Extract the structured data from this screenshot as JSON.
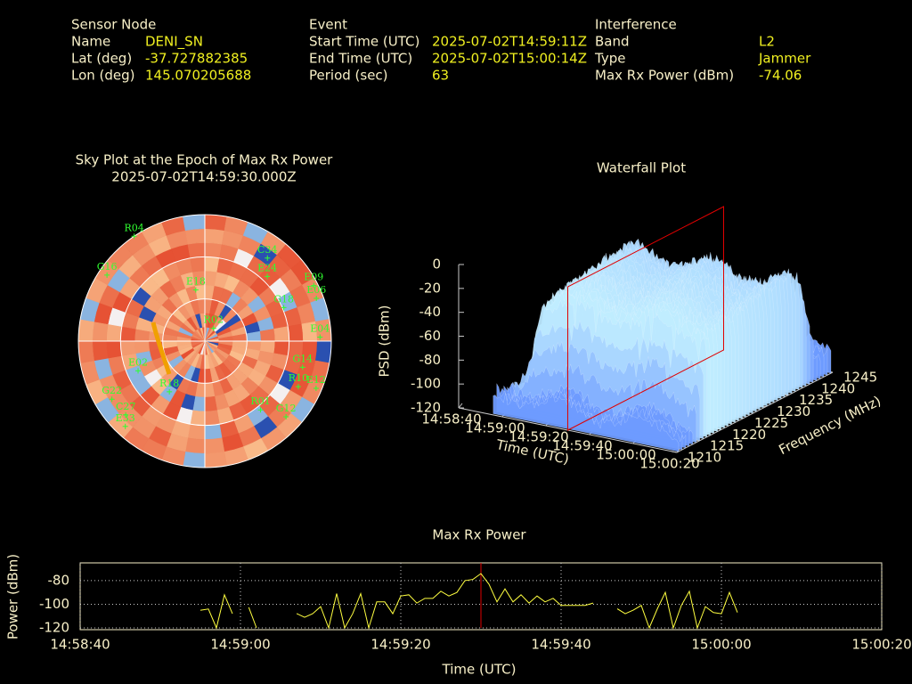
{
  "header": {
    "sensor": {
      "heading": "Sensor Node",
      "rows": [
        [
          "Name",
          "DENI_SN"
        ],
        [
          "Lat (deg)",
          "-37.727882385"
        ],
        [
          "Lon (deg)",
          "145.070205688"
        ]
      ]
    },
    "event": {
      "heading": "Event",
      "rows": [
        [
          "Start Time (UTC)",
          "2025-07-02T14:59:11Z"
        ],
        [
          "End Time (UTC)",
          "2025-07-02T15:00:14Z"
        ],
        [
          "Period (sec)",
          "63"
        ]
      ]
    },
    "interference": {
      "heading": "Interference",
      "rows": [
        [
          "Band",
          "L2"
        ],
        [
          "Type",
          "Jammer"
        ],
        [
          "Max Rx Power (dBm)",
          "-74.06"
        ]
      ]
    }
  },
  "chart_data": [
    {
      "type": "skyplot",
      "title": "Sky Plot at the Epoch of Max Rx Power",
      "subtitle": "2025-07-02T14:59:30.000Z",
      "color": "#30ff30",
      "satellites": [
        {
          "name": "R04",
          "azimuth": 326,
          "elevation": 0
        },
        {
          "name": "C34",
          "azimuth": 37,
          "elevation": 16
        },
        {
          "name": "G16",
          "azimuth": 304,
          "elevation": 6
        },
        {
          "name": "E09",
          "azimuth": 63,
          "elevation": 3
        },
        {
          "name": "E06",
          "azimuth": 69,
          "elevation": 5
        },
        {
          "name": "E24",
          "azimuth": 44,
          "elevation": 26
        },
        {
          "name": "G18",
          "azimuth": 67,
          "elevation": 29
        },
        {
          "name": "E04",
          "azimuth": 88,
          "elevation": 8
        },
        {
          "name": "G14",
          "azimuth": 105,
          "elevation": 18
        },
        {
          "name": "E12",
          "azimuth": 113,
          "elevation": 4
        },
        {
          "name": "R10",
          "azimuth": 116,
          "elevation": 16
        },
        {
          "name": "R01",
          "azimuth": 141,
          "elevation": 27
        },
        {
          "name": "G12",
          "azimuth": 133,
          "elevation": 11
        },
        {
          "name": "R18",
          "azimuth": 215,
          "elevation": 46
        },
        {
          "name": "G22",
          "azimuth": 238,
          "elevation": 12
        },
        {
          "name": "C27",
          "azimuth": 227,
          "elevation": 13
        },
        {
          "name": "E33",
          "azimuth": 223,
          "elevation": 7
        },
        {
          "name": "E02",
          "azimuth": 246,
          "elevation": 38
        },
        {
          "name": "R02",
          "azimuth": 34,
          "elevation": 79
        },
        {
          "name": "E18",
          "azimuth": 350,
          "elevation": 53
        }
      ]
    },
    {
      "type": "surface",
      "title": "Waterfall Plot",
      "x_label": "Time (UTC)",
      "y_label": "Frequency (MHz)",
      "z_label": "PSD (dBm)",
      "xlim": [
        "14:58:40",
        "15:00:20"
      ],
      "xticks": [
        "14:58:40",
        "14:59:00",
        "14:59:20",
        "14:59:40",
        "15:00:00",
        "15:00:20"
      ],
      "ylim": [
        1210,
        1245
      ],
      "yticks": [
        1210,
        1215,
        1220,
        1225,
        1230,
        1235,
        1240,
        1245
      ],
      "zlim": [
        -120,
        0
      ],
      "zticks": [
        0,
        -20,
        -40,
        -60,
        -80,
        -100,
        -120
      ],
      "marker_x": "14:59:30",
      "marker_color": "#e00000",
      "color": "#b8d4ea"
    },
    {
      "type": "line",
      "title": "Max Rx Power",
      "x_label": "Time (UTC)",
      "y_label": "Power (dBm)",
      "xlim": [
        "14:58:40",
        "15:00:20"
      ],
      "xticks": [
        "14:58:40",
        "14:59:00",
        "14:59:20",
        "14:59:40",
        "15:00:00",
        "15:00:20"
      ],
      "ylim": [
        -120,
        -65
      ],
      "yticks": [
        -80,
        -100,
        -120
      ],
      "grid": true,
      "marker_x": "14:59:30",
      "marker_color": "#e00000",
      "x": [
        "14:58:55",
        "14:58:56",
        "14:58:57",
        "14:58:58",
        "14:58:59",
        "14:59:00",
        "14:59:01",
        "14:59:02",
        "14:59:03",
        "14:59:04",
        "14:59:05",
        "14:59:06",
        "14:59:07",
        "14:59:08",
        "14:59:09",
        "14:59:10",
        "14:59:11",
        "14:59:12",
        "14:59:13",
        "14:59:14",
        "14:59:15",
        "14:59:16",
        "14:59:17",
        "14:59:18",
        "14:59:19",
        "14:59:20",
        "14:59:21",
        "14:59:22",
        "14:59:23",
        "14:59:24",
        "14:59:25",
        "14:59:26",
        "14:59:27",
        "14:59:28",
        "14:59:29",
        "14:59:30",
        "14:59:31",
        "14:59:32",
        "14:59:33",
        "14:59:34",
        "14:59:35",
        "14:59:36",
        "14:59:37",
        "14:59:38",
        "14:59:39",
        "14:59:40",
        "14:59:41",
        "14:59:42",
        "14:59:43",
        "14:59:44",
        "14:59:45",
        "14:59:46",
        "14:59:47",
        "14:59:48",
        "14:59:49",
        "14:59:50",
        "14:59:51",
        "14:59:52",
        "14:59:53",
        "14:59:54",
        "14:59:55",
        "14:59:56",
        "14:59:57",
        "14:59:58",
        "14:59:59",
        "15:00:00",
        "15:00:01",
        "15:00:02"
      ],
      "series": [
        {
          "name": "Max Rx Power",
          "color": "#ffff40",
          "values": [
            -105,
            -104,
            -120,
            -92,
            -108,
            null,
            -103,
            -120,
            null,
            null,
            null,
            null,
            -108,
            -111,
            -108,
            -102,
            -120,
            -91,
            -120,
            -108,
            -91,
            -120,
            -98,
            -98,
            -108,
            -93,
            -92,
            -99,
            -95,
            -95,
            -89,
            -93,
            -90,
            -80,
            -79,
            -74.06,
            -83,
            -98,
            -87,
            -98,
            -92,
            -99,
            -93,
            -98,
            -95,
            -101,
            -101,
            -101,
            -101,
            -99,
            null,
            null,
            -104,
            -108,
            -105,
            -101,
            -120,
            -104,
            -90,
            -120,
            -101,
            -89,
            -120,
            -102,
            -107,
            -108,
            -90,
            -107
          ]
        }
      ]
    }
  ]
}
